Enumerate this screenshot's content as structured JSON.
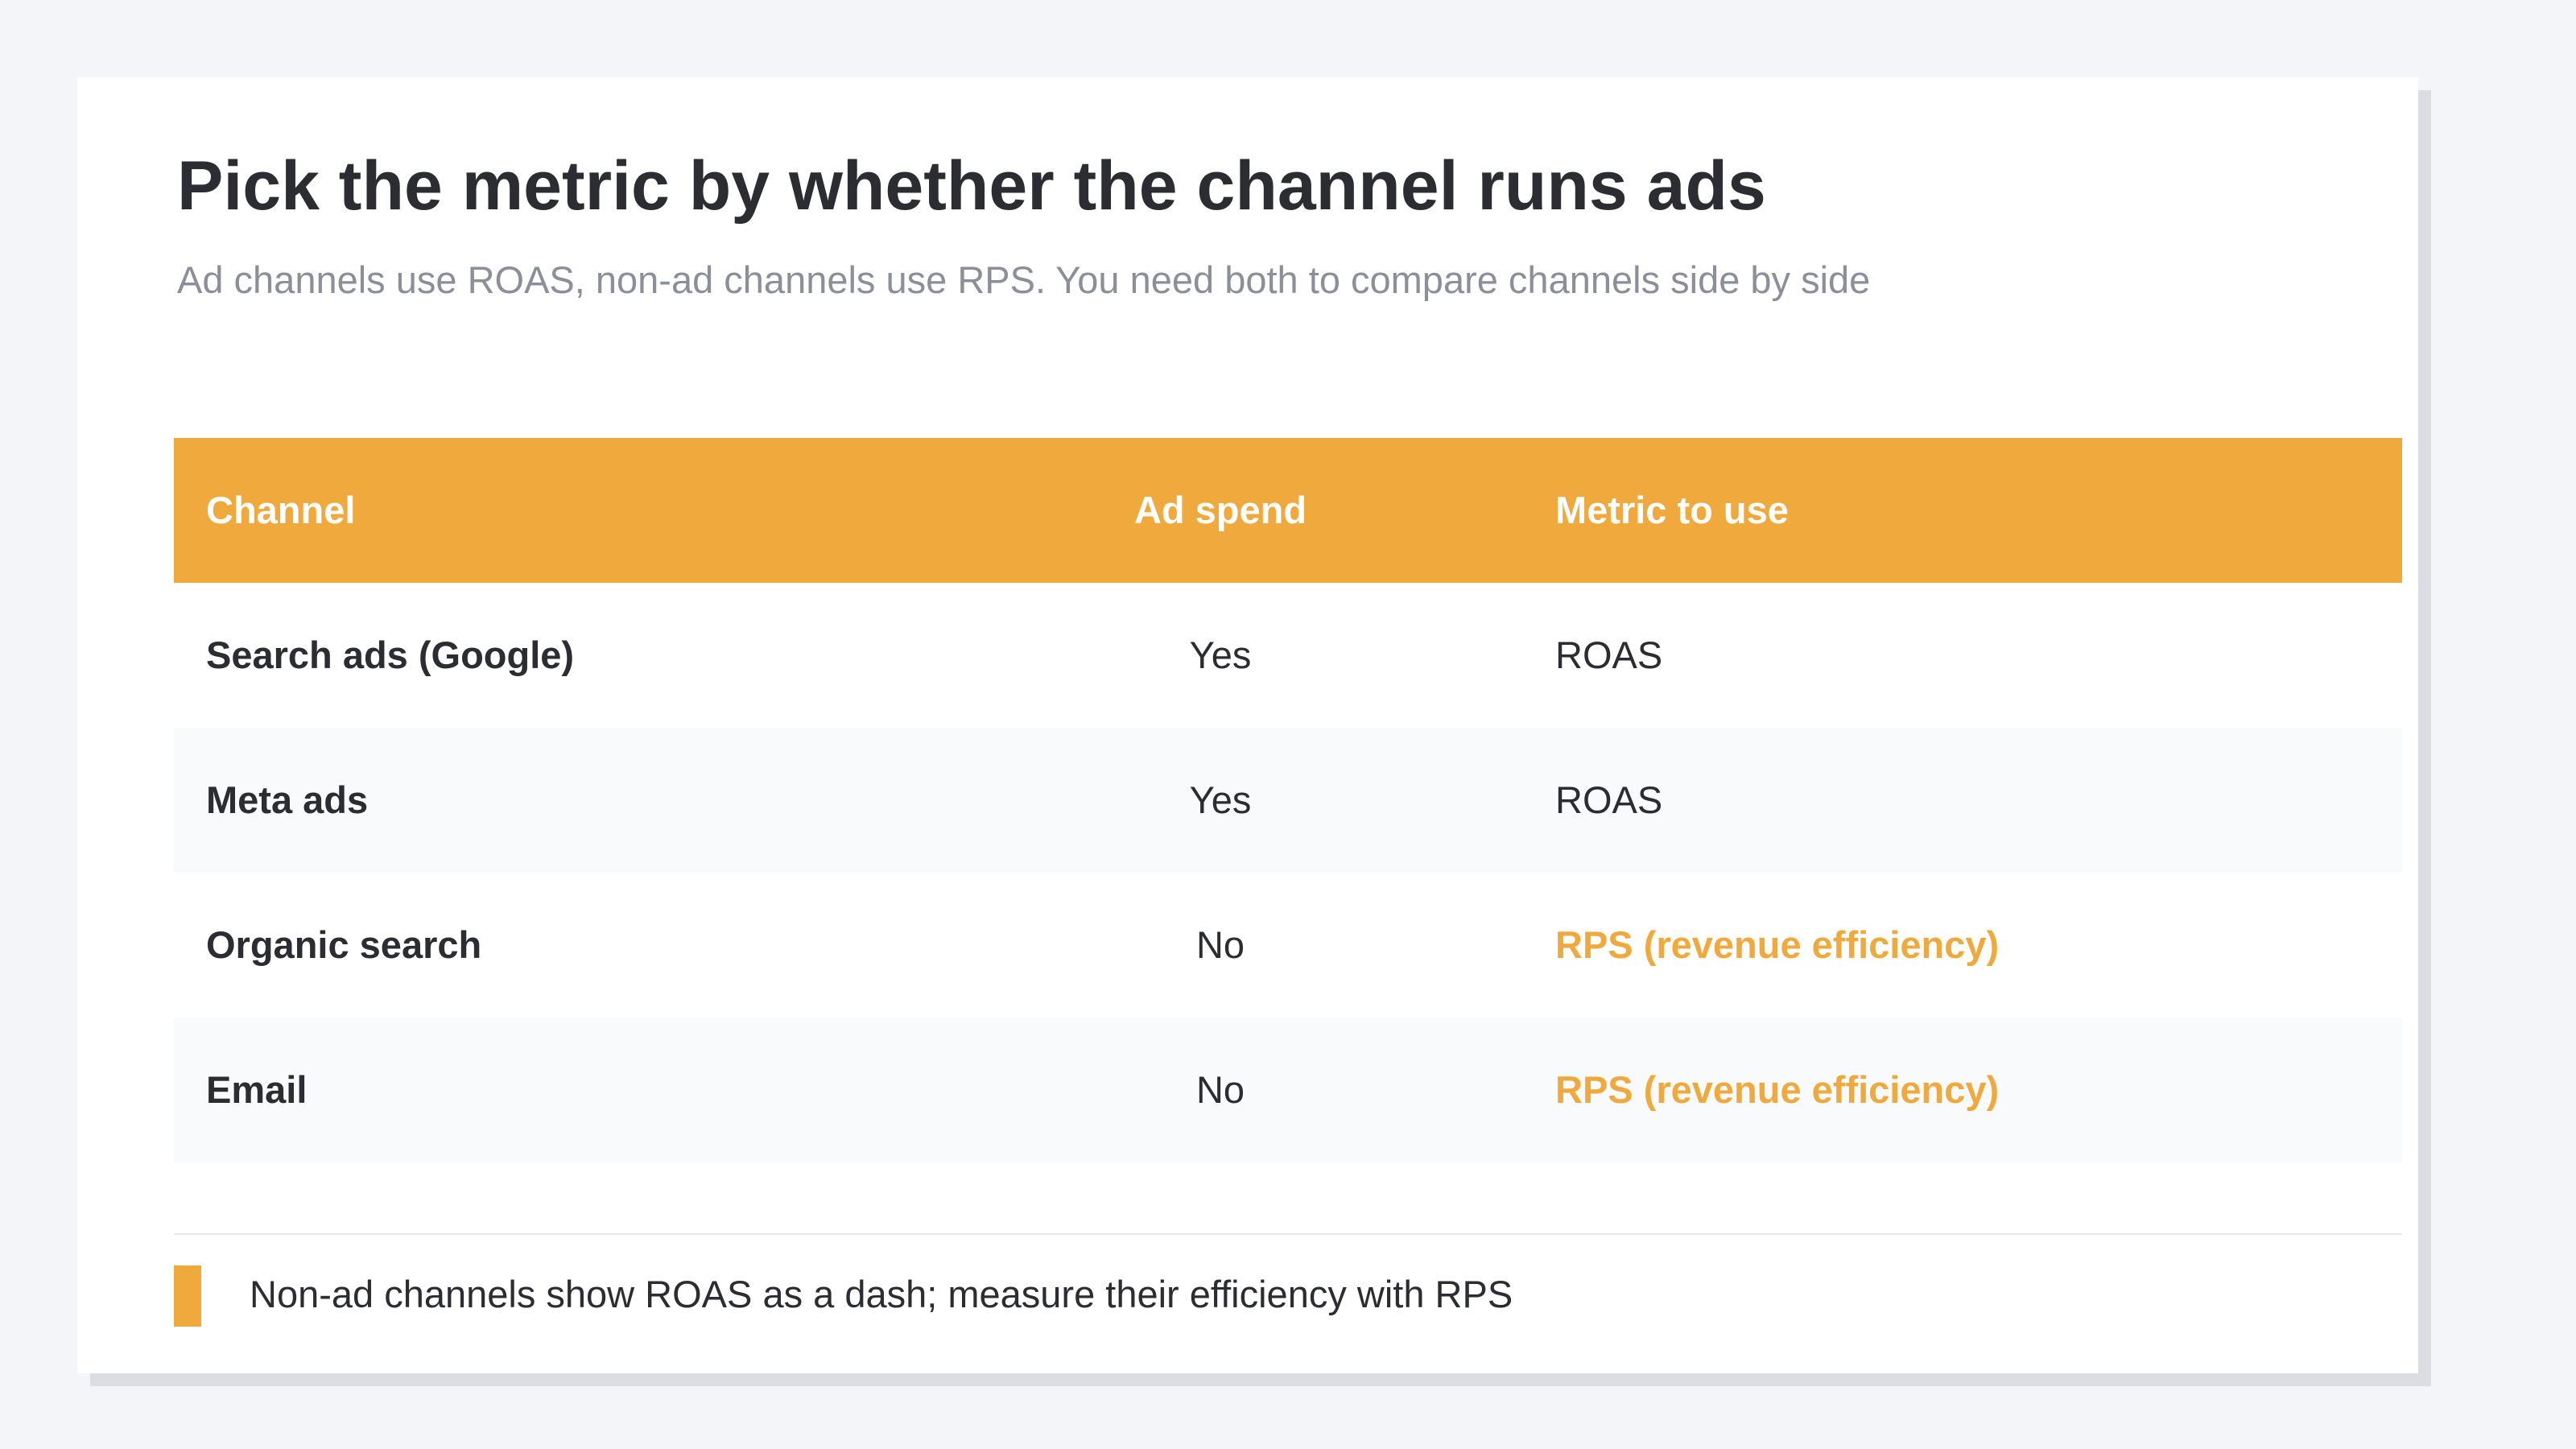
{
  "title": "Pick the metric by whether the channel runs ads",
  "subtitle": "Ad channels use ROAS, non-ad channels use RPS. You need both to compare channels side by side",
  "table": {
    "headers": {
      "channel": "Channel",
      "ad_spend": "Ad spend",
      "metric": "Metric to use"
    },
    "rows": [
      {
        "channel": "Search ads (Google)",
        "ad_spend": "Yes",
        "metric": "ROAS"
      },
      {
        "channel": "Meta ads",
        "ad_spend": "Yes",
        "metric": "ROAS"
      },
      {
        "channel": "Organic search",
        "ad_spend": "No",
        "metric": "RPS (revenue efficiency)"
      },
      {
        "channel": "Email",
        "ad_spend": "No",
        "metric": "RPS (revenue efficiency)"
      }
    ]
  },
  "note": "Non-ad channels show ROAS as a dash; measure their efficiency with RPS",
  "colors": {
    "accent": "#f0a93d",
    "text": "#2b2d33",
    "muted": "#8a8f99",
    "background": "#f4f5f8"
  }
}
